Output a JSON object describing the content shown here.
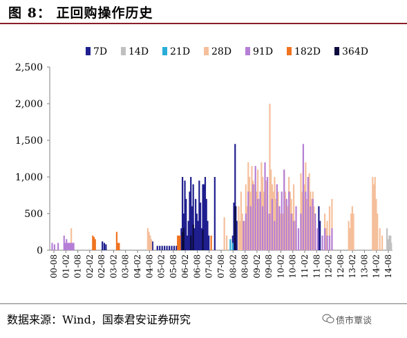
{
  "figure": {
    "title": "图  8： 正回购操作历史",
    "source": "数据来源：Wind，国泰君安证券研究",
    "watermark": "债市覃谈"
  },
  "chart_data": {
    "type": "bar",
    "ylim": [
      0,
      2500
    ],
    "yticks": [
      0,
      500,
      1000,
      1500,
      2000,
      2500
    ],
    "ytick_labels": [
      "0",
      "500",
      "1,000",
      "1,500",
      "2,000",
      "2,500"
    ],
    "xlim": [
      2000.5,
      2014.83
    ],
    "xtick_labels": [
      "00-08",
      "01-02",
      "01-08",
      "02-02",
      "02-08",
      "03-02",
      "03-08",
      "04-02",
      "04-08",
      "05-02",
      "05-08",
      "06-02",
      "06-08",
      "07-02",
      "07-08",
      "08-02",
      "08-08",
      "09-02",
      "09-08",
      "10-02",
      "10-08",
      "11-02",
      "11-08",
      "12-02",
      "12-08",
      "13-02",
      "13-08",
      "14-02",
      "14-08"
    ],
    "legend_position": "top",
    "series": [
      {
        "name": "7D",
        "color": "#1f1f8f",
        "x": [
          2002.7,
          2002.78,
          2002.85,
          2004.8,
          2005.0,
          2005.1,
          2005.2,
          2005.3,
          2005.4,
          2005.5,
          2005.6,
          2005.7,
          2005.8,
          2006.0,
          2006.05,
          2006.1,
          2006.15,
          2006.2,
          2006.25,
          2006.3,
          2006.35,
          2006.4,
          2006.45,
          2006.5,
          2006.55,
          2006.6,
          2006.65,
          2006.7,
          2006.75,
          2006.8,
          2006.85,
          2006.9,
          2006.95,
          2007.0,
          2007.05,
          2007.1,
          2007.15,
          2007.4,
          2008.15,
          2008.2,
          2008.25,
          2008.28,
          2008.32,
          2011.75,
          2011.8
        ],
        "y": [
          120,
          100,
          80,
          120,
          60,
          60,
          60,
          60,
          60,
          60,
          60,
          60,
          60,
          300,
          1000,
          500,
          950,
          700,
          200,
          400,
          800,
          1000,
          600,
          900,
          300,
          700,
          500,
          400,
          950,
          650,
          300,
          900,
          900,
          1000,
          700,
          400,
          200,
          1000,
          200,
          650,
          1450,
          600,
          400,
          600,
          400
        ]
      },
      {
        "name": "14D",
        "color": "#c0c0c0",
        "x": [
          2014.6,
          2014.65,
          2014.7,
          2014.75,
          2014.78
        ],
        "y": [
          300,
          150,
          200,
          200,
          100
        ]
      },
      {
        "name": "21D",
        "color": "#2aaed8",
        "x": [
          2008.05,
          2008.15
        ],
        "y": [
          150,
          100
        ]
      },
      {
        "name": "28D",
        "color": "#f5bf9b",
        "x": [
          2001.2,
          2001.4,
          2004.6,
          2004.65,
          2004.7,
          2004.75,
          2007.8,
          2007.9,
          2008.4,
          2008.45,
          2008.5,
          2008.55,
          2008.6,
          2008.65,
          2008.7,
          2008.75,
          2008.8,
          2008.85,
          2008.9,
          2008.95,
          2009.0,
          2009.05,
          2009.1,
          2009.15,
          2009.2,
          2009.25,
          2009.3,
          2009.35,
          2009.4,
          2009.45,
          2009.5,
          2009.55,
          2009.6,
          2009.65,
          2009.7,
          2009.75,
          2009.8,
          2009.85,
          2009.9,
          2009.95,
          2010.0,
          2010.05,
          2010.1,
          2010.15,
          2010.2,
          2010.25,
          2010.3,
          2010.35,
          2010.4,
          2010.45,
          2010.5,
          2010.55,
          2010.6,
          2010.65,
          2010.7,
          2010.75,
          2010.8,
          2011.0,
          2011.05,
          2011.1,
          2011.15,
          2011.2,
          2011.25,
          2011.3,
          2011.35,
          2011.4,
          2011.45,
          2011.5,
          2011.55,
          2011.6,
          2012.0,
          2012.05,
          2012.1,
          2012.2,
          2012.3,
          2013.0,
          2013.05,
          2013.1,
          2013.15,
          2013.2,
          2014.0,
          2014.05,
          2014.1,
          2014.15,
          2014.2,
          2014.3,
          2014.4
        ],
        "y": [
          100,
          300,
          300,
          250,
          200,
          150,
          450,
          200,
          600,
          400,
          800,
          500,
          300,
          400,
          900,
          600,
          1200,
          1000,
          800,
          1150,
          950,
          900,
          600,
          800,
          1100,
          700,
          500,
          1200,
          1000,
          800,
          600,
          950,
          750,
          500,
          2000,
          1100,
          900,
          800,
          1000,
          700,
          900,
          800,
          600,
          500,
          400,
          500,
          1100,
          800,
          700,
          600,
          1000,
          800,
          700,
          500,
          900,
          400,
          300,
          1050,
          800,
          1300,
          900,
          1200,
          700,
          900,
          1050,
          800,
          700,
          800,
          600,
          400,
          500,
          300,
          400,
          600,
          700,
          400,
          300,
          500,
          600,
          500,
          1000,
          900,
          1000,
          700,
          500,
          300,
          200
        ]
      },
      {
        "name": "91D",
        "color": "#b57fd6",
        "x": [
          2000.6,
          2000.7,
          2000.85,
          2001.1,
          2001.15,
          2001.2,
          2001.25,
          2001.3,
          2001.35,
          2001.4,
          2001.45,
          2001.5,
          2008.6,
          2008.7,
          2008.8,
          2008.9,
          2009.0,
          2009.1,
          2009.2,
          2009.3,
          2009.4,
          2009.5,
          2009.6,
          2009.7,
          2009.8,
          2009.9,
          2010.0,
          2010.1,
          2010.2,
          2010.3,
          2010.4,
          2010.5,
          2010.6,
          2010.7,
          2010.8,
          2010.9,
          2011.0,
          2011.1,
          2011.2,
          2011.3,
          2011.4,
          2011.5,
          2011.6,
          2011.7,
          2011.9,
          2012.0,
          2012.1,
          2012.2,
          2012.3
        ],
        "y": [
          100,
          80,
          100,
          200,
          100,
          150,
          100,
          100,
          100,
          100,
          100,
          100,
          400,
          500,
          800,
          600,
          900,
          1150,
          700,
          800,
          600,
          1200,
          1000,
          500,
          700,
          400,
          900,
          600,
          800,
          1100,
          700,
          800,
          500,
          400,
          600,
          300,
          500,
          1450,
          800,
          1000,
          600,
          700,
          500,
          300,
          200,
          300,
          200,
          200,
          300
        ]
      },
      {
        "name": "182D",
        "color": "#f07320",
        "x": [
          2002.3,
          2002.35,
          2002.4,
          2003.3,
          2003.35,
          2003.4,
          2005.85,
          2005.9,
          2005.95,
          2007.25
        ],
        "y": [
          200,
          180,
          150,
          250,
          100,
          100,
          200,
          200,
          200,
          200
        ]
      },
      {
        "name": "364D",
        "color": "#0b0b3d",
        "x": [
          2006.05,
          2006.1,
          2006.4,
          2006.5,
          2006.9,
          2008.25
        ],
        "y": [
          250,
          300,
          200,
          350,
          280,
          600
        ]
      }
    ]
  }
}
